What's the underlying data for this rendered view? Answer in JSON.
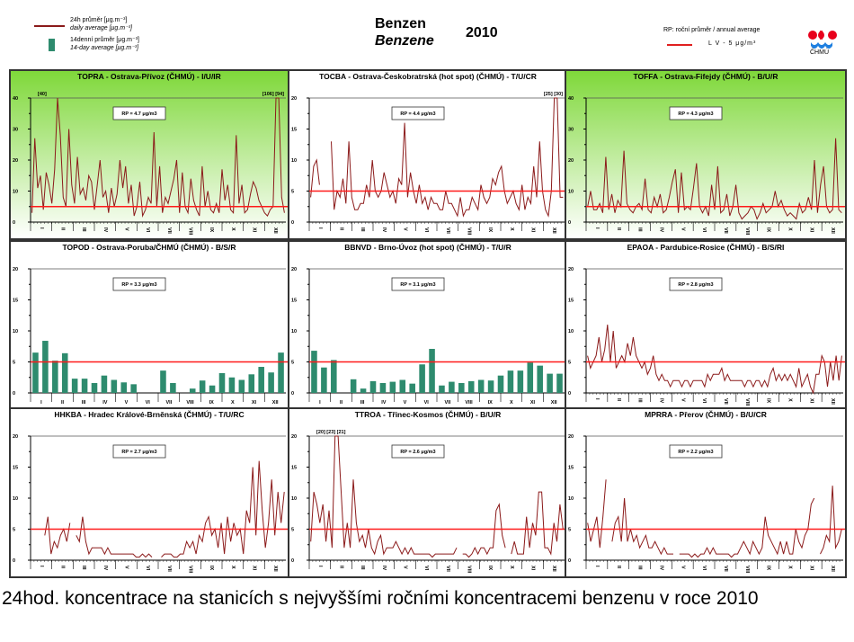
{
  "header": {
    "title_cz": "Benzen",
    "title_en": "Benzene",
    "year": "2010",
    "legend_daily_cz": "24h průměr [μg.m⁻³]",
    "legend_daily_en": "daily average [μg.m⁻³]",
    "legend_14day_cz": "14denní průměr [μg.m⁻³]",
    "legend_14day_en": "14-day average [μg.m⁻³]",
    "legend_rp": "RP: roční průměr / annual average",
    "legend_lv": "L V  -  5 μg/m³",
    "logo_text": "ČHMÚ",
    "logo_icon": "chmu-logo-icon"
  },
  "colors": {
    "daily_line": "#8b1a1a",
    "bar": "#2e8b6e",
    "limit_line": "#ff1a1a",
    "bg_green_top": "#7fd83a",
    "bg_green_bottom": "#ffffff"
  },
  "caption": "24hod. koncentrace na stanicích s nejvyššími ročními koncentracemi benzenu v roce 2010",
  "chart_data": [
    {
      "type": "line",
      "title": "TOPRA - Ostrava-Přívoz (ČHMÚ) - I/U/IR",
      "annotation": "RP = 4.7 μg/m3",
      "over_labels": [
        "[40]",
        "[106] [94]"
      ],
      "limit": 5,
      "ylim": [
        0,
        40
      ],
      "yticks": [
        "0",
        "10",
        "20",
        "30",
        "40"
      ],
      "xticks": [
        "I",
        "II",
        "III",
        "IV",
        "V",
        "VI",
        "VII",
        "VIII",
        "IX",
        "X",
        "XI",
        "XII"
      ],
      "green_bg": true,
      "values": [
        3,
        27,
        11,
        15,
        4,
        16,
        12,
        6,
        17,
        40,
        28,
        8,
        5,
        30,
        12,
        6,
        21,
        9,
        11,
        7,
        15,
        13,
        4,
        12,
        20,
        8,
        10,
        3,
        11,
        5,
        9,
        20,
        11,
        18,
        6,
        12,
        2,
        5,
        13,
        2,
        4,
        8,
        6,
        29,
        5,
        18,
        3,
        8,
        6,
        10,
        14,
        20,
        3,
        16,
        5,
        3,
        14,
        7,
        4,
        2,
        18,
        5,
        10,
        4,
        3,
        6,
        3,
        17,
        7,
        12,
        4,
        3,
        28,
        6,
        12,
        3,
        4,
        9,
        13,
        11,
        7,
        5,
        3,
        2,
        4,
        5,
        40,
        40,
        8,
        3
      ]
    },
    {
      "type": "line",
      "title": "TOCBA - Ostrava-Českobratrská (hot spot) (ČHMÚ) - T/U/CR",
      "annotation": "RP = 4.4 μg/m3",
      "over_labels": [
        "[25] [30]"
      ],
      "limit": 5,
      "ylim": [
        0,
        20
      ],
      "yticks": [
        "0",
        "5",
        "10",
        "15",
        "20"
      ],
      "xticks": [
        "I",
        "II",
        "III",
        "IV",
        "V",
        "VI",
        "VII",
        "VIII",
        "IX",
        "X",
        "XI",
        "XII"
      ],
      "green_bg": false,
      "values": [
        4,
        9,
        10,
        6,
        null,
        null,
        null,
        13,
        2,
        5,
        4,
        7,
        3,
        13,
        4,
        2,
        2,
        3,
        3,
        6,
        4,
        10,
        5,
        4,
        5,
        8,
        6,
        4,
        5,
        3,
        7,
        6,
        16,
        4,
        8,
        5,
        3,
        6,
        3,
        4,
        2,
        4,
        3,
        3,
        2,
        2,
        5,
        3,
        3,
        2,
        1,
        4,
        1,
        2,
        2,
        4,
        3,
        2,
        6,
        4,
        3,
        4,
        7,
        6,
        8,
        9,
        5,
        3,
        4,
        5,
        3,
        2,
        6,
        2,
        4,
        3,
        9,
        4,
        13,
        5,
        2,
        1,
        5,
        20,
        20,
        4,
        4
      ]
    },
    {
      "type": "line",
      "title": "TOFFA - Ostrava-Fifejdy (ČHMÚ) - B/U/R",
      "annotation": "RP = 4.3 μg/m3",
      "over_labels": [],
      "limit": 5,
      "ylim": [
        0,
        40
      ],
      "yticks": [
        "0",
        "10",
        "20",
        "30",
        "40"
      ],
      "xticks": [
        "I",
        "II",
        "III",
        "IV",
        "V",
        "VI",
        "VII",
        "VIII",
        "IX",
        "X",
        "XI",
        "XII"
      ],
      "green_bg": true,
      "values": [
        5,
        10,
        4,
        4,
        6,
        3,
        21,
        4,
        9,
        3,
        7,
        5,
        23,
        6,
        4,
        3,
        5,
        6,
        4,
        14,
        4,
        3,
        8,
        5,
        9,
        3,
        4,
        8,
        13,
        17,
        3,
        16,
        4,
        5,
        4,
        11,
        19,
        5,
        3,
        5,
        2,
        12,
        4,
        18,
        3,
        4,
        9,
        2,
        5,
        12,
        3,
        1,
        2,
        3,
        5,
        4,
        1,
        3,
        6,
        3,
        4,
        5,
        10,
        5,
        7,
        4,
        2,
        3,
        2,
        1,
        6,
        3,
        4,
        8,
        4,
        20,
        3,
        12,
        18,
        5,
        3,
        4,
        27,
        4,
        3
      ]
    },
    {
      "type": "bar",
      "title": "TOPOD - Ostrava-Poruba/ČHMÚ (ČHMÚ) - B/S/R",
      "annotation": "RP = 3.3 μg/m3",
      "limit": 5,
      "ylim": [
        0,
        20
      ],
      "yticks": [
        "0",
        "5",
        "10",
        "15",
        "20"
      ],
      "xticks": [
        "I",
        "II",
        "III",
        "IV",
        "V",
        "VI",
        "VII",
        "VIII",
        "IX",
        "X",
        "XI",
        "XII"
      ],
      "values": [
        6.5,
        8.4,
        5.2,
        6.4,
        2.3,
        2.3,
        1.6,
        2.8,
        2.1,
        1.7,
        1.4,
        null,
        null,
        3.6,
        1.6,
        null,
        0.7,
        2.0,
        1.2,
        3.2,
        2.5,
        2.1,
        3.0,
        4.2,
        3.3,
        6.5
      ]
    },
    {
      "type": "bar",
      "title": "BBNVD - Brno-Úvoz (hot spot) (ČHMÚ) - T/U/R",
      "annotation": "RP = 3.1 μg/m3",
      "limit": 5,
      "ylim": [
        0,
        20
      ],
      "yticks": [
        "0",
        "5",
        "10",
        "15",
        "20"
      ],
      "xticks": [
        "I",
        "II",
        "III",
        "IV",
        "V",
        "VI",
        "VII",
        "VIII",
        "IX",
        "X",
        "XI",
        "XII"
      ],
      "values": [
        6.8,
        4.1,
        5.3,
        null,
        2.2,
        0.7,
        1.9,
        1.6,
        1.8,
        2.1,
        1.5,
        4.6,
        7.1,
        1.2,
        1.8,
        1.6,
        1.9,
        2.1,
        2.0,
        2.8,
        3.6,
        3.6,
        4.9,
        4.4,
        3.1,
        3.1
      ]
    },
    {
      "type": "line",
      "title": "EPAOA - Pardubice-Rosice (ČHMÚ) - B/S/RI",
      "annotation": "RP = 2.8 μg/m3",
      "over_labels": [],
      "limit": 5,
      "ylim": [
        0,
        20
      ],
      "yticks": [
        "0",
        "5",
        "10",
        "15",
        "20"
      ],
      "xticks": [
        "I",
        "II",
        "III",
        "IV",
        "V",
        "VI",
        "VII",
        "VIII",
        "IX",
        "X",
        "XI",
        "XII"
      ],
      "green_bg": false,
      "values": [
        6,
        4,
        5,
        6,
        9,
        5,
        7,
        11,
        5,
        10,
        4,
        5,
        6,
        5,
        8,
        6,
        9,
        6,
        5,
        4,
        5,
        3,
        4,
        6,
        3,
        2,
        3,
        2,
        2,
        1,
        2,
        2,
        2,
        1,
        2,
        2,
        1,
        2,
        2,
        2,
        2,
        1,
        3,
        2,
        3,
        3,
        3,
        4,
        2,
        3,
        2,
        2,
        2,
        2,
        2,
        1,
        2,
        2,
        1,
        2,
        2,
        1,
        2,
        1,
        3,
        4,
        2,
        3,
        2,
        3,
        2,
        3,
        2,
        1,
        4,
        1,
        2,
        3,
        1,
        0,
        3,
        3,
        6,
        5,
        1,
        5,
        2,
        6,
        2,
        6
      ]
    },
    {
      "type": "line",
      "title": "HHKBA - Hradec Králové-Brněnská (ČHMÚ) - T/U/RC",
      "annotation": "RP = 2.7 μg/m3",
      "over_labels": [],
      "limit": 5,
      "ylim": [
        0,
        20
      ],
      "yticks": [
        "0",
        "5",
        "10",
        "15",
        "20"
      ],
      "xticks": [
        "I",
        "II",
        "III",
        "IV",
        "V",
        "VI",
        "VII",
        "VIII",
        "IX",
        "X",
        "XI",
        "XII"
      ],
      "green_bg": false,
      "values": [
        1,
        null,
        null,
        null,
        4,
        7,
        1,
        3,
        2,
        4,
        5,
        3,
        6,
        null,
        4,
        3,
        7,
        3,
        1,
        2,
        2,
        2,
        2,
        1,
        2,
        1,
        1,
        1,
        1,
        1,
        1,
        1,
        1,
        0.5,
        0.5,
        1,
        0.5,
        1,
        0.5,
        null,
        null,
        0.5,
        1,
        1,
        1,
        0.5,
        0.5,
        1,
        1,
        3,
        2,
        3,
        1,
        4,
        3,
        6,
        7,
        4,
        5,
        2,
        6,
        1,
        7,
        3,
        6,
        4,
        5,
        1,
        8,
        6,
        15,
        4,
        16,
        8,
        2,
        6,
        13,
        4,
        11,
        6,
        11
      ]
    },
    {
      "type": "line",
      "title": "TTROA - Třinec-Kosmos (ČHMÚ) - B/U/R",
      "annotation": "RP = 2.6 μg/m3",
      "over_labels": [
        "[20] [23] [21]"
      ],
      "limit": 5,
      "ylim": [
        0,
        20
      ],
      "yticks": [
        "0",
        "5",
        "10",
        "15",
        "20"
      ],
      "xticks": [
        "I",
        "II",
        "III",
        "IV",
        "V",
        "VI",
        "VII",
        "VIII",
        "IX",
        "X",
        "XI",
        "XII"
      ],
      "green_bg": false,
      "values": [
        3,
        11,
        9,
        6,
        9,
        3,
        8,
        2,
        20,
        20,
        11,
        2,
        6,
        2,
        13,
        6,
        3,
        4,
        2,
        5,
        2,
        1,
        3,
        4,
        1,
        2,
        2,
        2,
        3,
        2,
        1,
        2,
        1,
        2,
        1,
        1,
        1,
        1,
        1,
        1,
        0.5,
        1,
        1,
        1,
        1,
        1,
        1,
        1,
        2,
        null,
        1,
        1,
        0.5,
        1,
        2,
        1,
        2,
        2,
        1,
        2,
        2,
        8,
        9,
        4,
        2,
        null,
        1,
        3,
        1,
        1,
        1,
        7,
        2,
        6,
        4,
        11,
        11,
        2,
        2,
        1,
        6,
        3,
        9,
        5
      ]
    },
    {
      "type": "line",
      "title": "MPRRA - Přerov (ČHMÚ) - B/U/CR",
      "annotation": "RP = 2.2 μg/m3",
      "over_labels": [],
      "limit": 5,
      "ylim": [
        0,
        20
      ],
      "yticks": [
        "0",
        "5",
        "10",
        "15",
        "20"
      ],
      "xticks": [
        "I",
        "II",
        "III",
        "IV",
        "V",
        "VI",
        "VII",
        "VIII",
        "IX",
        "X",
        "XI",
        "XII"
      ],
      "green_bg": false,
      "values": [
        6,
        3,
        5,
        7,
        2,
        7,
        13,
        null,
        3,
        6,
        7,
        3,
        10,
        3,
        5,
        3,
        4,
        2,
        3,
        4,
        2,
        2,
        3,
        2,
        1,
        2,
        1,
        1,
        1,
        null,
        1,
        1,
        1,
        1,
        0.5,
        1,
        0.5,
        1,
        1,
        2,
        1,
        2,
        1,
        1,
        1,
        1,
        1,
        0.5,
        1,
        1,
        2,
        3,
        2,
        1,
        3,
        2,
        1,
        2,
        7,
        4,
        3,
        2,
        1,
        3,
        1,
        3,
        1,
        1,
        5,
        3,
        2,
        4,
        5,
        9,
        10,
        null,
        1,
        2,
        4,
        3,
        12,
        2,
        3,
        5
      ]
    }
  ]
}
